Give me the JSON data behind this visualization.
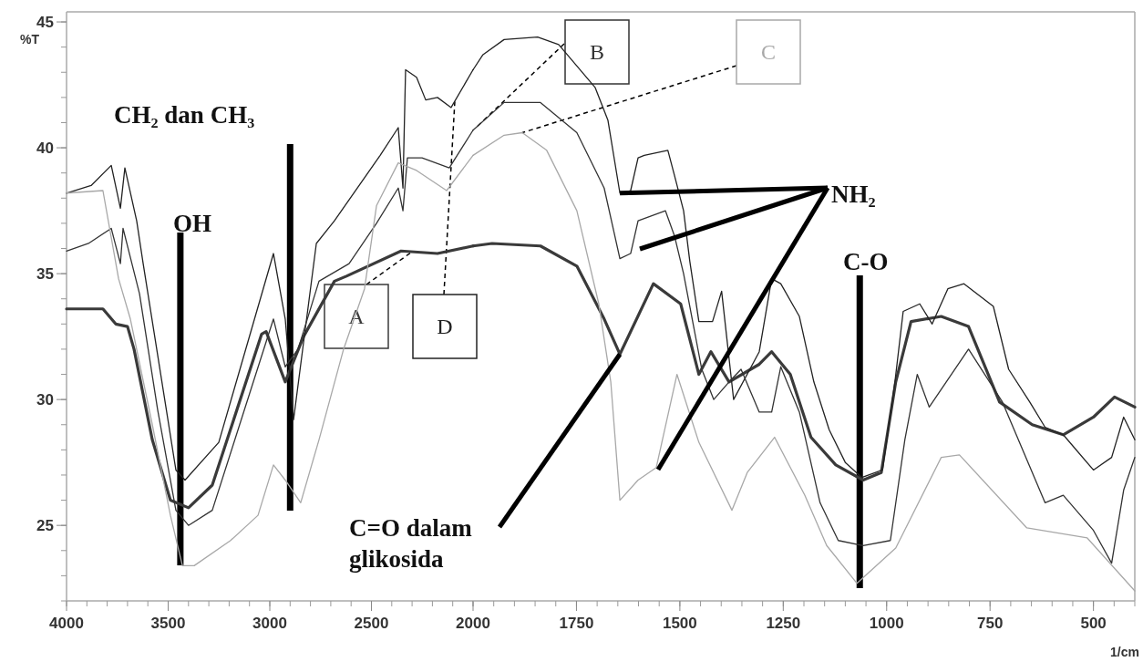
{
  "chart_data": [
    {
      "type": "line",
      "ylabel": "%T",
      "xlim": [
        4000,
        2000
      ],
      "xticks": [
        4000,
        3500,
        3000,
        2500,
        2000
      ],
      "ylim": [
        22,
        45.4
      ],
      "yticks": [
        25,
        30,
        35,
        40,
        45
      ],
      "ref_lines": [
        {
          "axis": "x",
          "value": 3440,
          "label": "OH"
        },
        {
          "axis": "x",
          "value": 2900,
          "label": "CH₂ dan CH₃"
        }
      ],
      "series": [
        {
          "name": "A",
          "color": "#3a3a3a",
          "x": [
            4000,
            3821,
            3758,
            3700,
            3668,
            3578,
            3489,
            3400,
            3283,
            3040,
            3018,
            2924,
            2834,
            2682,
            2623,
            2354,
            2175,
            2000
          ],
          "values": [
            33.6,
            33.6,
            33.0,
            32.9,
            32.0,
            28.4,
            26.0,
            25.7,
            26.6,
            32.6,
            32.7,
            30.7,
            32.5,
            34.7,
            34.9,
            35.9,
            35.8,
            36.1
          ]
        },
        {
          "name": "D",
          "color": "#222222",
          "x": [
            4000,
            3879,
            3780,
            3735,
            3713,
            3655,
            3623,
            3462,
            3417,
            3251,
            2982,
            2924,
            2883,
            2771,
            2682,
            2457,
            2368,
            2345,
            2332,
            2278,
            2233,
            2175,
            2108,
            2000
          ],
          "values": [
            38.2,
            38.5,
            39.3,
            37.6,
            39.2,
            37.1,
            35.4,
            27.2,
            26.8,
            28.3,
            35.8,
            33.2,
            29.2,
            36.2,
            37.1,
            39.7,
            40.8,
            38.4,
            43.1,
            42.8,
            41.9,
            42.0,
            41.6,
            43.1
          ]
        },
        {
          "color": "#333333",
          "x": [
            4000,
            3892,
            3780,
            3735,
            3722,
            3641,
            3552,
            3462,
            3400,
            3283,
            2982,
            2924,
            2861,
            2758,
            2610,
            2475,
            2368,
            2345,
            2323,
            2251,
            2117,
            2000
          ],
          "values": [
            35.9,
            36.2,
            36.8,
            35.4,
            36.8,
            34.2,
            29.6,
            25.6,
            25.0,
            25.6,
            33.2,
            31.3,
            32.0,
            34.7,
            35.4,
            37.0,
            38.4,
            37.5,
            39.6,
            39.6,
            39.2,
            40.7
          ]
        },
        {
          "color": "#a8a8a8",
          "x": [
            4000,
            3821,
            3744,
            3686,
            3578,
            3489,
            3430,
            3372,
            3193,
            3058,
            2982,
            2924,
            2848,
            2758,
            2637,
            2534,
            2475,
            2368,
            2278,
            2130,
            2000
          ],
          "values": [
            38.2,
            38.3,
            34.8,
            33.2,
            29.0,
            25.4,
            23.4,
            23.4,
            24.4,
            25.4,
            27.4,
            26.8,
            25.9,
            28.4,
            32.0,
            34.4,
            37.7,
            39.4,
            39.1,
            38.3,
            39.7
          ]
        }
      ]
    },
    {
      "type": "line",
      "xlabel": "1/cm",
      "xlim": [
        2000,
        400
      ],
      "xticks": [
        1750,
        1500,
        1250,
        1000,
        750,
        500
      ],
      "ylim": [
        22,
        45.4
      ],
      "tick_labels": "x",
      "annotations": [
        {
          "text": "NH₂",
          "x": 1645,
          "y": 38.2
        },
        {
          "text": "C=O dalam glikosida",
          "x": 1645,
          "y": 31.8
        }
      ],
      "ref_lines": [
        {
          "axis": "x",
          "value": 1065,
          "label": "C-O"
        }
      ],
      "series": [
        {
          "color": "#3a3a3a",
          "x": [
            2000,
            1954,
            1837,
            1749,
            1683,
            1645,
            1564,
            1498,
            1454,
            1425,
            1381,
            1308,
            1278,
            1233,
            1183,
            1123,
            1057,
            1013,
            978,
            941,
            868,
            802,
            727,
            648,
            573,
            500,
            449,
            400
          ],
          "values": [
            36.1,
            36.2,
            36.1,
            35.3,
            33.2,
            31.8,
            34.6,
            33.8,
            31.0,
            31.9,
            30.7,
            31.4,
            31.9,
            31.0,
            28.5,
            27.4,
            26.8,
            27.1,
            30.7,
            33.1,
            33.3,
            32.9,
            29.9,
            29.0,
            28.6,
            29.3,
            30.1,
            29.7
          ]
        },
        {
          "color": "#222222",
          "x": [
            2000,
            1976,
            1925,
            1844,
            1793,
            1705,
            1674,
            1645,
            1619,
            1601,
            1586,
            1529,
            1513,
            1491,
            1476,
            1454,
            1421,
            1399,
            1370,
            1308,
            1278,
            1256,
            1211,
            1176,
            1139,
            1100,
            1060,
            1010,
            980,
            960,
            920,
            890,
            852,
            813,
            742,
            705,
            654,
            617,
            573,
            500,
            456,
            427,
            400
          ],
          "values": [
            43.1,
            43.7,
            44.3,
            44.4,
            44.1,
            42.4,
            41.1,
            38.2,
            38.3,
            39.6,
            39.7,
            39.9,
            38.9,
            37.5,
            35.5,
            33.1,
            33.1,
            34.3,
            30.0,
            31.9,
            34.8,
            34.6,
            33.3,
            30.7,
            28.8,
            27.5,
            26.9,
            27.2,
            30.7,
            33.5,
            33.8,
            33.0,
            34.4,
            34.6,
            33.7,
            31.2,
            29.9,
            28.9,
            28.6,
            27.2,
            27.7,
            29.3,
            28.4
          ]
        },
        {
          "name": "B",
          "color": "#333333",
          "x": [
            2000,
            1925,
            1837,
            1749,
            1683,
            1645,
            1619,
            1601,
            1535,
            1513,
            1491,
            1469,
            1447,
            1418,
            1381,
            1352,
            1308,
            1278,
            1256,
            1211,
            1161,
            1117,
            1057,
            991,
            956,
            926,
            897,
            802,
            720,
            617,
            573,
            500,
            456,
            427,
            400
          ],
          "values": [
            40.7,
            41.8,
            41.8,
            40.6,
            38.4,
            35.6,
            35.8,
            37.1,
            37.5,
            36.5,
            35.0,
            33.1,
            31.2,
            30.0,
            30.7,
            31.2,
            29.5,
            29.5,
            31.3,
            29.5,
            25.9,
            24.4,
            24.2,
            24.4,
            28.4,
            31.0,
            29.7,
            32.0,
            29.9,
            25.9,
            26.2,
            24.8,
            23.5,
            26.4,
            27.7
          ]
        },
        {
          "name": "C",
          "color": "#a8a8a8",
          "x": [
            2000,
            1925,
            1881,
            1822,
            1749,
            1696,
            1667,
            1645,
            1601,
            1557,
            1507,
            1454,
            1374,
            1337,
            1271,
            1198,
            1145,
            1072,
            978,
            868,
            824,
            661,
            515,
            400
          ],
          "values": [
            39.7,
            40.5,
            40.6,
            39.9,
            37.5,
            33.8,
            30.7,
            26.0,
            26.8,
            27.3,
            31.0,
            28.3,
            25.6,
            27.1,
            28.5,
            26.2,
            24.2,
            22.7,
            24.1,
            27.7,
            27.8,
            24.9,
            24.5,
            22.4
          ]
        }
      ]
    }
  ]
}
